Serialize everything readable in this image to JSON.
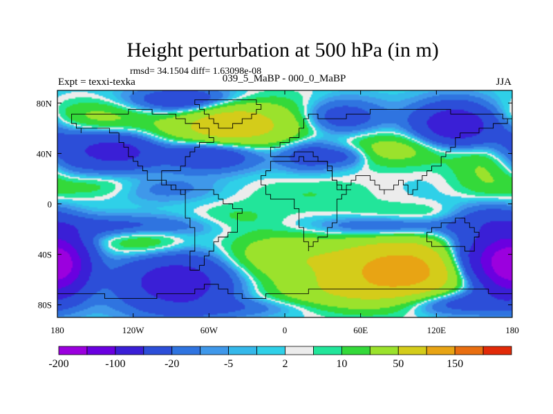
{
  "chart_data": {
    "type": "heatmap",
    "title": "Height perturbation at 500 hPa (in m)",
    "subtitle": "rmsd= 34.1504 diff= 1.63098e-08",
    "left_label": "Expt = texxi-texka",
    "center_label": "039_5_MaBP - 000_0_MaBP",
    "right_label": "JJA",
    "xlim": [
      -180,
      180
    ],
    "ylim": [
      -90,
      90
    ],
    "x_ticks": [
      {
        "value": -180,
        "label": "180"
      },
      {
        "value": -120,
        "label": "120W"
      },
      {
        "value": -60,
        "label": "60W"
      },
      {
        "value": 0,
        "label": "0"
      },
      {
        "value": 60,
        "label": "60E"
      },
      {
        "value": 120,
        "label": "120E"
      },
      {
        "value": 180,
        "label": "180"
      }
    ],
    "y_ticks": [
      {
        "value": 80,
        "label": "80N"
      },
      {
        "value": 40,
        "label": "40N"
      },
      {
        "value": 0,
        "label": "0"
      },
      {
        "value": -40,
        "label": "40S"
      },
      {
        "value": -80,
        "label": "80S"
      }
    ],
    "levels": [
      -200,
      -150,
      -100,
      -50,
      -20,
      -10,
      -5,
      -2,
      2,
      5,
      10,
      20,
      50,
      100,
      150,
      200
    ],
    "colorbar_labels": [
      {
        "value": -200,
        "label": "-200"
      },
      {
        "value": -100,
        "label": "-100"
      },
      {
        "value": -20,
        "label": "-20"
      },
      {
        "value": -5,
        "label": "-5"
      },
      {
        "value": 2,
        "label": "2"
      },
      {
        "value": 10,
        "label": "10"
      },
      {
        "value": 50,
        "label": "50"
      },
      {
        "value": 150,
        "label": "150"
      }
    ],
    "colors": [
      "#9b00de",
      "#6a00e0",
      "#3a1fd6",
      "#2c4ed8",
      "#2f74e0",
      "#3f98ea",
      "#35b8ea",
      "#2fd0e8",
      "#ececec",
      "#22e59a",
      "#34d93a",
      "#9be22c",
      "#d4cc1a",
      "#e8a414",
      "#e96e10",
      "#e22a08"
    ],
    "field": {
      "description_units": "m",
      "blobs": [
        {
          "lon": -170,
          "lat": 44,
          "amp": -35,
          "slon": 22,
          "slat": 14
        },
        {
          "lon": -130,
          "lat": 42,
          "amp": -60,
          "slon": 20,
          "slat": 10
        },
        {
          "lon": -150,
          "lat": 68,
          "amp": 28,
          "slon": 30,
          "slat": 10
        },
        {
          "lon": -80,
          "lat": 82,
          "amp": -45,
          "slon": 30,
          "slat": 7
        },
        {
          "lon": -65,
          "lat": 58,
          "amp": 40,
          "slon": 30,
          "slat": 12
        },
        {
          "lon": -40,
          "lat": 64,
          "amp": 55,
          "slon": 22,
          "slat": 12
        },
        {
          "lon": -60,
          "lat": 40,
          "amp": -55,
          "slon": 28,
          "slat": 9
        },
        {
          "lon": 5,
          "lat": 62,
          "amp": 35,
          "slon": 24,
          "slat": 15
        },
        {
          "lon": 40,
          "lat": 68,
          "amp": -40,
          "slon": 25,
          "slat": 10
        },
        {
          "lon": 20,
          "lat": 40,
          "amp": -45,
          "slon": 18,
          "slat": 9
        },
        {
          "lon": 50,
          "lat": 38,
          "amp": -25,
          "slon": 12,
          "slat": 6
        },
        {
          "lon": 90,
          "lat": 44,
          "amp": 30,
          "slon": 40,
          "slat": 10
        },
        {
          "lon": 135,
          "lat": 62,
          "amp": -90,
          "slon": 22,
          "slat": 12
        },
        {
          "lon": 160,
          "lat": 30,
          "amp": 25,
          "slon": 18,
          "slat": 14
        },
        {
          "lon": -150,
          "lat": 14,
          "amp": 18,
          "slon": 35,
          "slat": 7
        },
        {
          "lon": -100,
          "lat": 12,
          "amp": -18,
          "slon": 30,
          "slat": 7
        },
        {
          "lon": 20,
          "lat": 8,
          "amp": 10,
          "slon": 40,
          "slat": 10
        },
        {
          "lon": -40,
          "lat": -12,
          "amp": 12,
          "slon": 25,
          "slat": 8
        },
        {
          "lon": 100,
          "lat": -8,
          "amp": 10,
          "slon": 40,
          "slat": 6
        },
        {
          "lon": -130,
          "lat": -18,
          "amp": -30,
          "slon": 50,
          "slat": 6
        },
        {
          "lon": 80,
          "lat": -18,
          "amp": -30,
          "slon": 40,
          "slat": 6
        },
        {
          "lon": 160,
          "lat": -10,
          "amp": -25,
          "slon": 20,
          "slat": 8
        },
        {
          "lon": -180,
          "lat": -48,
          "amp": -95,
          "slon": 16,
          "slat": 16
        },
        {
          "lon": 180,
          "lat": -48,
          "amp": -95,
          "slon": 16,
          "slat": 16
        },
        {
          "lon": -110,
          "lat": -30,
          "amp": 25,
          "slon": 25,
          "slat": 9
        },
        {
          "lon": -85,
          "lat": -62,
          "amp": -75,
          "slon": 32,
          "slat": 16
        },
        {
          "lon": 0,
          "lat": -42,
          "amp": 40,
          "slon": 35,
          "slat": 13
        },
        {
          "lon": 95,
          "lat": -52,
          "amp": 130,
          "slon": 38,
          "slat": 16
        },
        {
          "lon": 40,
          "lat": -70,
          "amp": 30,
          "slon": 40,
          "slat": 10
        },
        {
          "lon": 150,
          "lat": -45,
          "amp": -80,
          "slon": 20,
          "slat": 15
        },
        {
          "lon": 130,
          "lat": -78,
          "amp": -40,
          "slon": 30,
          "slat": 7
        },
        {
          "lon": -30,
          "lat": -82,
          "amp": -15,
          "slon": 40,
          "slat": 5
        }
      ]
    }
  }
}
